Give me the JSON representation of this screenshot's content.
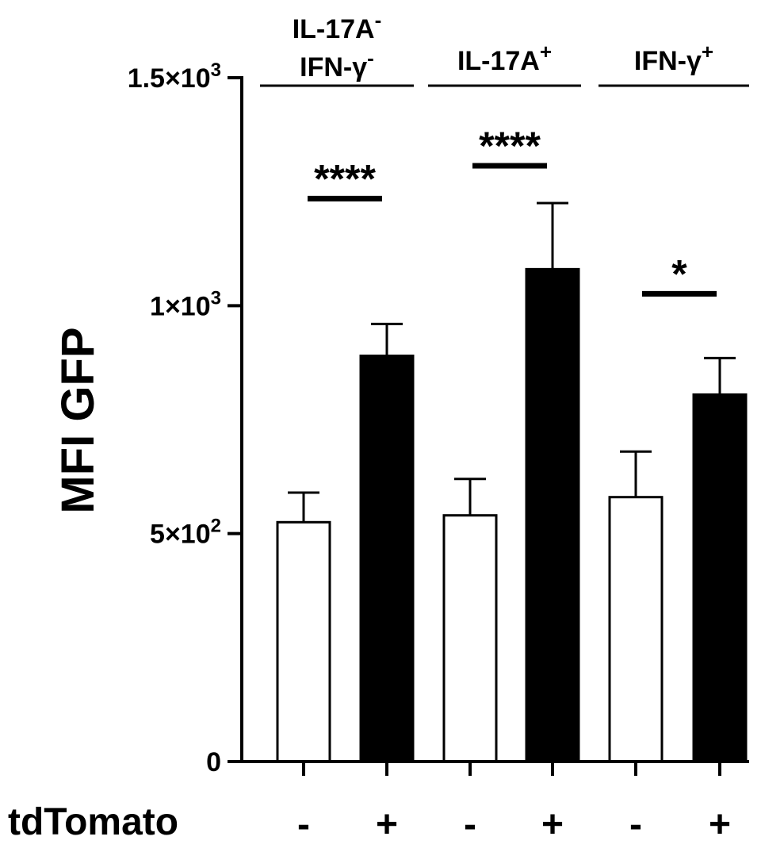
{
  "chart_data": {
    "type": "bar",
    "ylabel": "MFI GFP",
    "ylim": [
      0,
      1500
    ],
    "yticks": [
      {
        "value": 0,
        "label": "0"
      },
      {
        "value": 500,
        "label": "5×10",
        "exp": "2"
      },
      {
        "value": 1000,
        "label": "1×10",
        "exp": "3"
      },
      {
        "value": 1500,
        "label": "1.5×10",
        "exp": "3"
      }
    ],
    "groups": [
      {
        "label_lines": [
          {
            "text": "IL-17A",
            "sup": "-"
          },
          {
            "text": "IFN-γ",
            "sup": "-"
          }
        ],
        "significance": "****"
      },
      {
        "label_lines": [
          {
            "text": "IL-17A",
            "sup": "+"
          }
        ],
        "significance": "****"
      },
      {
        "label_lines": [
          {
            "text": "IFN-γ",
            "sup": "+"
          }
        ],
        "significance": "*"
      }
    ],
    "condition_label": "tdTomato",
    "conditions": [
      "-",
      "+"
    ],
    "bars": [
      {
        "group": 0,
        "condition": "-",
        "value": 525,
        "error": 65,
        "fill": "#ffffff"
      },
      {
        "group": 0,
        "condition": "+",
        "value": 890,
        "error": 70,
        "fill": "#000000"
      },
      {
        "group": 1,
        "condition": "-",
        "value": 540,
        "error": 80,
        "fill": "#ffffff"
      },
      {
        "group": 1,
        "condition": "+",
        "value": 1080,
        "error": 145,
        "fill": "#000000"
      },
      {
        "group": 2,
        "condition": "-",
        "value": 580,
        "error": 100,
        "fill": "#ffffff"
      },
      {
        "group": 2,
        "condition": "+",
        "value": 805,
        "error": 80,
        "fill": "#000000"
      }
    ],
    "grid": false
  }
}
